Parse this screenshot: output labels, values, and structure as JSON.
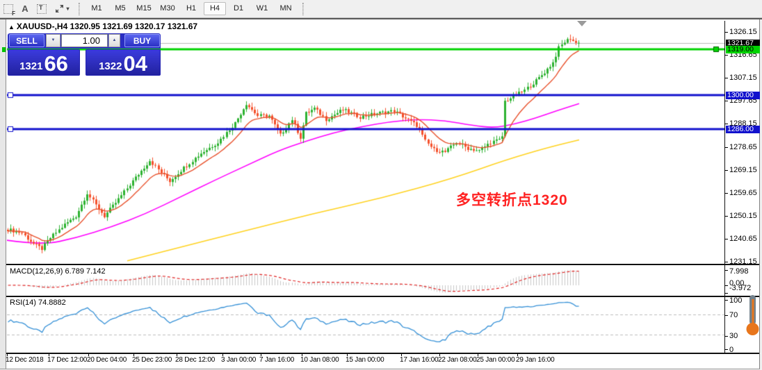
{
  "toolbar": {
    "icon_glyphs": {
      "f": "F",
      "a": "A",
      "t": "T",
      "caret": "▾",
      "spin_down": "▼",
      "spin_up": "▲"
    },
    "timeframes": [
      {
        "label": "M1",
        "active": false
      },
      {
        "label": "M5",
        "active": false
      },
      {
        "label": "M15",
        "active": false
      },
      {
        "label": "M30",
        "active": false
      },
      {
        "label": "H1",
        "active": false
      },
      {
        "label": "H4",
        "active": true
      },
      {
        "label": "D1",
        "active": false
      },
      {
        "label": "W1",
        "active": false
      },
      {
        "label": "MN",
        "active": false
      }
    ]
  },
  "chart": {
    "title_marker": "▲",
    "title": "XAUUSD-,H4 1320.95 1321.69 1320.17 1321.67",
    "annotation": {
      "text": "多空转折点1320",
      "color": "#ff2222"
    },
    "trade_panel": {
      "sell_label": "SELL",
      "buy_label": "BUY",
      "volume": "1.00",
      "sell_small": "1321",
      "sell_big": "66",
      "buy_small": "1322",
      "buy_big": "04"
    }
  },
  "price_axis": {
    "ticks": [
      "1326.15",
      "1316.65",
      "1307.15",
      "1297.65",
      "1288.15",
      "1278.65",
      "1269.15",
      "1259.65",
      "1250.15",
      "1240.65",
      "1231.15"
    ],
    "current": {
      "label": "1321.67",
      "value": 1321.67
    },
    "levels": [
      {
        "label": "1319.00",
        "value": 1319.0,
        "style": "green"
      },
      {
        "label": "1300.00",
        "value": 1300.0,
        "style": "blue"
      },
      {
        "label": "1286.00",
        "value": 1286.0,
        "style": "blue"
      }
    ]
  },
  "macd_panel": {
    "label": "MACD(12,26,9) 6.789 7.142",
    "axis": [
      "7.998",
      "0.00",
      "-3.972"
    ]
  },
  "rsi_panel": {
    "label": "RSI(14) 74.8882",
    "axis": [
      "100",
      "70",
      "30",
      "0"
    ]
  },
  "date_axis": [
    [
      8,
      "12 Dec 2018"
    ],
    [
      68,
      "17 Dec 12:00"
    ],
    [
      125,
      "20 Dec 04:00"
    ],
    [
      190,
      "25 Dec 23:00"
    ],
    [
      252,
      "28 Dec 12:00"
    ],
    [
      318,
      "3 Jan 00:00"
    ],
    [
      373,
      "7 Jan 16:00"
    ],
    [
      432,
      "10 Jan 08:00"
    ],
    [
      497,
      "15 Jan 00:00"
    ],
    [
      575,
      "17 Jan 16:00"
    ],
    [
      630,
      "22 Jan 08:00"
    ],
    [
      685,
      "25 Jan 00:00"
    ],
    [
      742,
      "29 Jan 16:00"
    ]
  ],
  "chart_data": {
    "type": "candlestick",
    "symbol": "XAUUSD-",
    "timeframe": "H4",
    "ohlc": {
      "open": 1320.95,
      "high": 1321.69,
      "low": 1320.17,
      "close": 1321.67
    },
    "bid": 1321.66,
    "ask": 1322.04,
    "price_range": {
      "top": 1326.15,
      "bottom": 1231.15
    },
    "candles_count": 202,
    "current_price": 1321.67,
    "close_path_anchors": [
      [
        0,
        1244.5
      ],
      [
        5,
        1243
      ],
      [
        9,
        1238.5
      ],
      [
        12,
        1236.5
      ],
      [
        15,
        1241
      ],
      [
        20,
        1246.5
      ],
      [
        24,
        1250
      ],
      [
        28,
        1259.5
      ],
      [
        31,
        1254.5
      ],
      [
        34,
        1250
      ],
      [
        38,
        1255.5
      ],
      [
        44,
        1264.5
      ],
      [
        50,
        1273
      ],
      [
        54,
        1268
      ],
      [
        57,
        1264.5
      ],
      [
        62,
        1270
      ],
      [
        68,
        1276
      ],
      [
        74,
        1280.5
      ],
      [
        80,
        1288.5
      ],
      [
        84,
        1296.5
      ],
      [
        86,
        1294
      ],
      [
        88,
        1291.5
      ],
      [
        92,
        1291.5
      ],
      [
        96,
        1283.5
      ],
      [
        100,
        1290
      ],
      [
        103,
        1282.5
      ],
      [
        105,
        1292.5
      ],
      [
        108,
        1294.5
      ],
      [
        112,
        1290
      ],
      [
        118,
        1294
      ],
      [
        124,
        1291
      ],
      [
        130,
        1292.5
      ],
      [
        136,
        1293.5
      ],
      [
        140,
        1290.5
      ],
      [
        144,
        1287.5
      ],
      [
        147,
        1281
      ],
      [
        150,
        1277.5
      ],
      [
        154,
        1276.5
      ],
      [
        158,
        1280.5
      ],
      [
        162,
        1278
      ],
      [
        166,
        1277
      ],
      [
        170,
        1280.5
      ],
      [
        173,
        1281.5
      ],
      [
        174,
        1283
      ],
      [
        175,
        1297.5
      ],
      [
        178,
        1299.5
      ],
      [
        182,
        1302
      ],
      [
        186,
        1306
      ],
      [
        189,
        1309.5
      ],
      [
        192,
        1313.5
      ],
      [
        194,
        1319.5
      ],
      [
        196,
        1322
      ],
      [
        198,
        1323.5
      ],
      [
        200,
        1321.5
      ],
      [
        201,
        1321.67
      ]
    ],
    "levels": [
      {
        "price": 1319.0,
        "color": "#00d400"
      },
      {
        "price": 1300.0,
        "color": "#1111cd"
      },
      {
        "price": 1286.0,
        "color": "#1111cd"
      }
    ],
    "moving_averages": {
      "fast": {
        "type": "EMA",
        "period": 12,
        "color": "#e8502b"
      },
      "mid": {
        "color": "#ff00ff",
        "points": [
          [
            10,
            1240
          ],
          [
            60,
            1238
          ],
          [
            110,
            1241
          ],
          [
            160,
            1245.5
          ],
          [
            210,
            1251
          ],
          [
            260,
            1258
          ],
          [
            310,
            1265
          ],
          [
            355,
            1271
          ],
          [
            400,
            1277
          ],
          [
            440,
            1281
          ],
          [
            480,
            1284.5
          ],
          [
            520,
            1287
          ],
          [
            560,
            1289
          ],
          [
            600,
            1290
          ],
          [
            640,
            1289.5
          ],
          [
            680,
            1287.5
          ],
          [
            710,
            1286.5
          ],
          [
            740,
            1288
          ],
          [
            770,
            1290.5
          ],
          [
            800,
            1293.5
          ],
          [
            833,
            1296.5
          ]
        ]
      },
      "slow": {
        "color": "#ffd21f",
        "points": [
          [
            183,
            1231.5
          ],
          [
            250,
            1236.5
          ],
          [
            346,
            1243.5
          ],
          [
            450,
            1251
          ],
          [
            550,
            1257.5
          ],
          [
            650,
            1265.5
          ],
          [
            730,
            1273.5
          ],
          [
            790,
            1278.5
          ],
          [
            833,
            1281.5
          ]
        ]
      }
    },
    "macd": {
      "fast": 12,
      "slow": 26,
      "signal": 9,
      "values": [
        6.789,
        7.142
      ],
      "hist_color": "#c8c8c8",
      "signal_color": "#e02424",
      "axis_max": 7.998,
      "axis_min": -3.972
    },
    "rsi": {
      "period": 14,
      "value": 74.8882,
      "levels": [
        70,
        30
      ],
      "color": "#338fd6"
    },
    "colors": {
      "up": "#2db231",
      "down": "#f4512c",
      "grid_current": "#b9b9b9"
    }
  }
}
